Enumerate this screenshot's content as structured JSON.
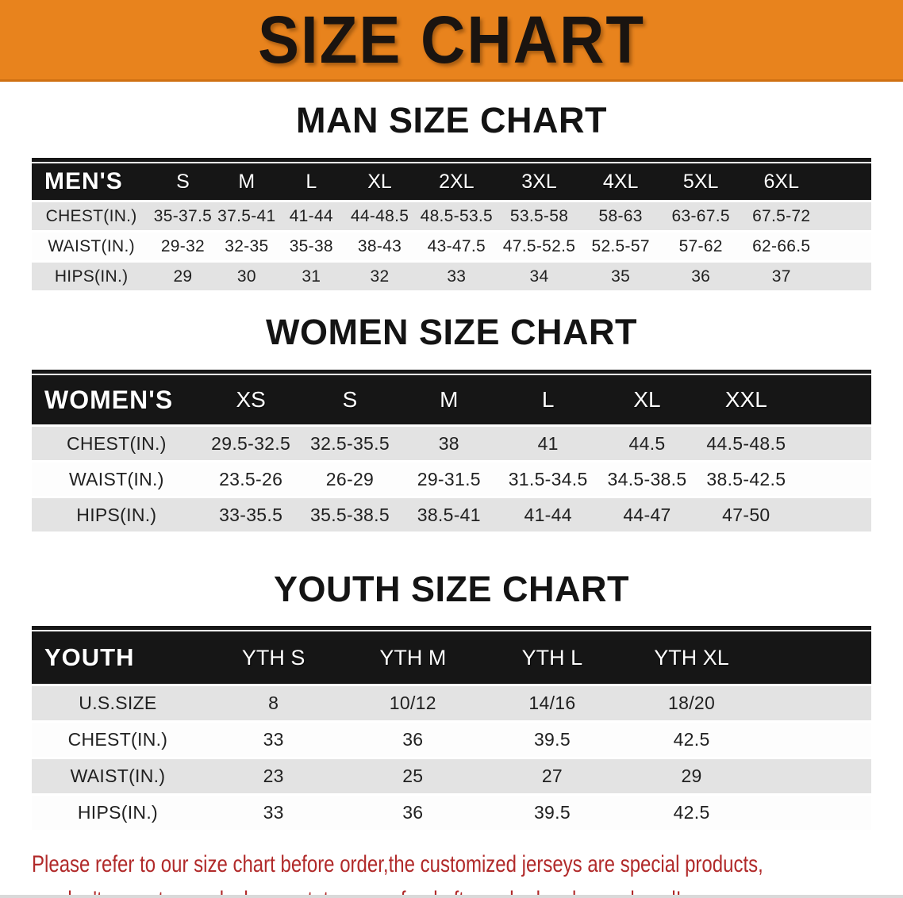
{
  "banner": {
    "title": "SIZE CHART"
  },
  "sections": [
    {
      "id": "men",
      "heading": "MAN SIZE CHART",
      "label": "MEN'S",
      "columns": [
        "S",
        "M",
        "L",
        "XL",
        "2XL",
        "3XL",
        "4XL",
        "5XL",
        "6XL"
      ],
      "rows": [
        {
          "label": "CHEST(IN.)",
          "values": [
            "35-37.5",
            "37.5-41",
            "41-44",
            "44-48.5",
            "48.5-53.5",
            "53.5-58",
            "58-63",
            "63-67.5",
            "67.5-72"
          ]
        },
        {
          "label": "WAIST(IN.)",
          "values": [
            "29-32",
            "32-35",
            "35-38",
            "38-43",
            "43-47.5",
            "47.5-52.5",
            "52.5-57",
            "57-62",
            "62-66.5"
          ]
        },
        {
          "label": "HIPS(IN.)",
          "values": [
            "29",
            "30",
            "31",
            "32",
            "33",
            "34",
            "35",
            "36",
            "37"
          ]
        }
      ]
    },
    {
      "id": "women",
      "heading": "WOMEN SIZE CHART",
      "label": "WOMEN'S",
      "columns": [
        "XS",
        "S",
        "M",
        "L",
        "XL",
        "XXL"
      ],
      "rows": [
        {
          "label": "CHEST(IN.)",
          "values": [
            "29.5-32.5",
            "32.5-35.5",
            "38",
            "41",
            "44.5",
            "44.5-48.5"
          ]
        },
        {
          "label": "WAIST(IN.)",
          "values": [
            "23.5-26",
            "26-29",
            "29-31.5",
            "31.5-34.5",
            "34.5-38.5",
            "38.5-42.5"
          ]
        },
        {
          "label": "HIPS(IN.)",
          "values": [
            "33-35.5",
            "35.5-38.5",
            "38.5-41",
            "41-44",
            "44-47",
            "47-50"
          ]
        }
      ]
    },
    {
      "id": "youth",
      "heading": "YOUTH SIZE CHART",
      "label": "YOUTH",
      "columns": [
        "YTH S",
        "YTH M",
        "YTH L",
        "YTH XL"
      ],
      "rows": [
        {
          "label": "U.S.SIZE",
          "values": [
            "8",
            "10/12",
            "14/16",
            "18/20"
          ]
        },
        {
          "label": "CHEST(IN.)",
          "values": [
            "33",
            "36",
            "39.5",
            "42.5"
          ]
        },
        {
          "label": "WAIST(IN.)",
          "values": [
            "23",
            "25",
            "27",
            "29"
          ]
        },
        {
          "label": "HIPS(IN.)",
          "values": [
            "33",
            "36",
            "39.5",
            "42.5"
          ]
        }
      ]
    }
  ],
  "footer": {
    "line1": "Please refer to our size chart before order,the customized jerseys are special products,",
    "line2": "we don't accept cancel, change, teturn or refund after order has been placed!"
  },
  "colors": {
    "banner_bg": "#e8831d",
    "table_header_bg": "#161616",
    "row_stripe": "#e3e3e3",
    "notice_text": "#b12a2a"
  }
}
